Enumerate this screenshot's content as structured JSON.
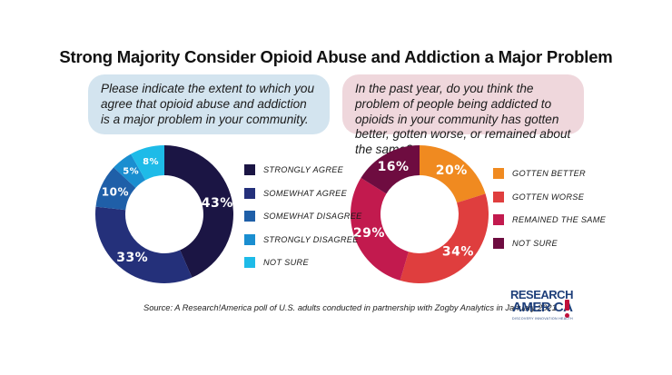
{
  "title": "Strong Majority Consider Opioid Abuse and Addiction a Major Problem",
  "source": "Source: A Research!America poll of U.S. adults conducted in partnership with Zogby Analytics in January 2021.",
  "logo": {
    "line1": "RESEARCH",
    "line2": "AMER CA",
    "tagline": "DISCOVERY  INNOVATION  HEALTH",
    "color": "#1e3f7a",
    "accent": "#c0103a"
  },
  "chart_data": [
    {
      "type": "pie",
      "style": "donut",
      "question": "Please indicate the extent to which you agree that opioid abuse and addiction is a major problem in your community.",
      "legend_position": "right",
      "categories": [
        "STRONGLY AGREE",
        "SOMEWHAT AGREE",
        "SOMEWHAT DISAGREE",
        "STRONGLY DISAGREE",
        "NOT SURE"
      ],
      "values": [
        43,
        33,
        10,
        5,
        8
      ],
      "labels": [
        "43%",
        "33%",
        "10%",
        "5%",
        "8%"
      ],
      "colors": [
        "#1b1544",
        "#24307a",
        "#1f5fa8",
        "#1a8ed0",
        "#1ebbe8"
      ]
    },
    {
      "type": "pie",
      "style": "donut",
      "question": "In the past year, do you think the problem of people being addicted to opioids in your community has gotten better, gotten worse, or remained about the same?",
      "legend_position": "right",
      "categories": [
        "GOTTEN BETTER",
        "GOTTEN WORSE",
        "REMAINED THE SAME",
        "NOT SURE"
      ],
      "values": [
        20,
        34,
        29,
        16
      ],
      "labels": [
        "20%",
        "34%",
        "29%",
        "16%"
      ],
      "colors": [
        "#f08a20",
        "#df3e3e",
        "#c21a4e",
        "#6e0c40"
      ]
    }
  ]
}
